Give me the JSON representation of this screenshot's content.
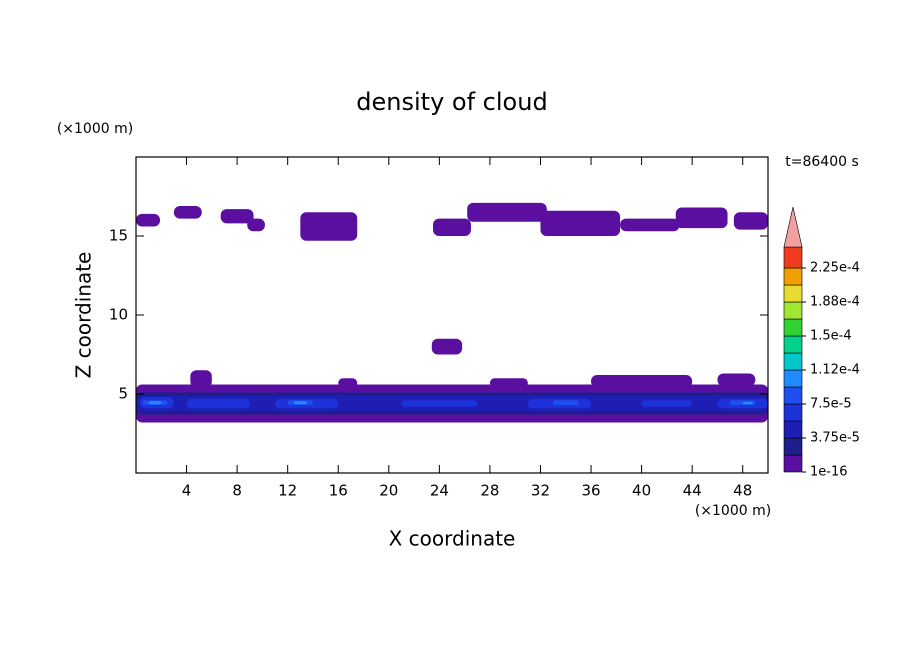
{
  "chart_data": {
    "type": "contour",
    "title": "density of cloud",
    "xlabel": "X coordinate",
    "ylabel": "Z coordinate",
    "x_unit_label": "(×1000 m)",
    "y_unit_label": "(×1000 m)",
    "time_label": "t=86400 s",
    "xlim": [
      0,
      50
    ],
    "xticks": [
      4,
      8,
      12,
      16,
      20,
      24,
      28,
      32,
      36,
      40,
      44,
      48
    ],
    "ylim": [
      0,
      20
    ],
    "yticks": [
      5,
      10,
      15
    ],
    "colorbar": {
      "levels": [
        1e-16,
        1.875e-05,
        3.75e-05,
        5.625e-05,
        7.5e-05,
        9.375e-05,
        0.0001125,
        0.00013125,
        0.00015,
        0.00016875,
        0.0001875,
        0.00020625,
        0.000225
      ],
      "colors": [
        "#5a0fa0",
        "#1e1e8c",
        "#1e1eb4",
        "#1e32dc",
        "#1e50f0",
        "#1e8cff",
        "#00c8c8",
        "#00d28c",
        "#32d232",
        "#a0e632",
        "#e6dc32",
        "#f0a000",
        "#f03c1e"
      ],
      "over_color": "#f5a0a0",
      "ticks": [
        1e-16,
        {
          "value": 3.75e-05,
          "label": "3.75e-5"
        },
        {
          "value": 7.5e-05,
          "label": "7.5e-5"
        },
        {
          "value": 0.0001125,
          "label": "1.12e-4"
        },
        {
          "value": 0.00015,
          "label": "1.5e-4"
        },
        {
          "value": 0.0001875,
          "label": "1.88e-4"
        },
        {
          "value": 0.000225,
          "label": "2.25e-4"
        }
      ]
    },
    "regions": [
      {
        "x": [
          0,
          1.9
        ],
        "z": [
          15.6,
          16.4
        ],
        "value": 1e-16
      },
      {
        "x": [
          3,
          5.2
        ],
        "z": [
          16.1,
          16.9
        ],
        "value": 1e-16
      },
      {
        "x": [
          6.7,
          9.3
        ],
        "z": [
          15.8,
          16.7
        ],
        "value": 1e-16
      },
      {
        "x": [
          8.8,
          10.2
        ],
        "z": [
          15.3,
          16.1
        ],
        "value": 1e-16
      },
      {
        "x": [
          13,
          17.5
        ],
        "z": [
          14.7,
          16.5
        ],
        "value": 1e-16
      },
      {
        "x": [
          23.5,
          26.5
        ],
        "z": [
          15,
          16.1
        ],
        "value": 1e-16
      },
      {
        "x": [
          26.2,
          32.5
        ],
        "z": [
          15.9,
          17.1
        ],
        "value": 1e-16
      },
      {
        "x": [
          32,
          38.3
        ],
        "z": [
          15,
          16.6
        ],
        "value": 1e-16
      },
      {
        "x": [
          38.3,
          43
        ],
        "z": [
          15.3,
          16.1
        ],
        "value": 1e-16
      },
      {
        "x": [
          42.7,
          46.8
        ],
        "z": [
          15.5,
          16.8
        ],
        "value": 1e-16
      },
      {
        "x": [
          47.3,
          50
        ],
        "z": [
          15.4,
          16.5
        ],
        "value": 1e-16
      },
      {
        "x": [
          23.4,
          25.8
        ],
        "z": [
          7.5,
          8.5
        ],
        "value": 1e-16
      },
      {
        "x": [
          0,
          50
        ],
        "z": [
          3.2,
          5.6
        ],
        "value": 1e-16
      },
      {
        "x": [
          4.3,
          6
        ],
        "z": [
          5.4,
          6.5
        ],
        "value": 1e-16
      },
      {
        "x": [
          16,
          17.5
        ],
        "z": [
          5.4,
          6
        ],
        "value": 1e-16
      },
      {
        "x": [
          28,
          31
        ],
        "z": [
          5.4,
          6
        ],
        "value": 1e-16
      },
      {
        "x": [
          36,
          44
        ],
        "z": [
          5.4,
          6.2
        ],
        "value": 1e-16
      },
      {
        "x": [
          46,
          49
        ],
        "z": [
          5.5,
          6.3
        ],
        "value": 1e-16
      },
      {
        "x": [
          0,
          50
        ],
        "z": [
          3.7,
          5.1
        ],
        "value": 1.875e-05
      },
      {
        "x": [
          0,
          50
        ],
        "z": [
          3.9,
          4.9
        ],
        "value": 3.75e-05
      },
      {
        "x": [
          0.3,
          3
        ],
        "z": [
          4.1,
          4.8
        ],
        "value": 5.625e-05
      },
      {
        "x": [
          4,
          9
        ],
        "z": [
          4.1,
          4.7
        ],
        "value": 5.625e-05
      },
      {
        "x": [
          11,
          16
        ],
        "z": [
          4.1,
          4.7
        ],
        "value": 5.625e-05
      },
      {
        "x": [
          21,
          27
        ],
        "z": [
          4.2,
          4.6
        ],
        "value": 5.625e-05
      },
      {
        "x": [
          31,
          36
        ],
        "z": [
          4.1,
          4.7
        ],
        "value": 5.625e-05
      },
      {
        "x": [
          40,
          44
        ],
        "z": [
          4.2,
          4.6
        ],
        "value": 5.625e-05
      },
      {
        "x": [
          46,
          50
        ],
        "z": [
          4.1,
          4.7
        ],
        "value": 5.625e-05
      },
      {
        "x": [
          0.5,
          2.5
        ],
        "z": [
          4.3,
          4.6
        ],
        "value": 7.5e-05
      },
      {
        "x": [
          12,
          14
        ],
        "z": [
          4.3,
          4.6
        ],
        "value": 7.5e-05
      },
      {
        "x": [
          33,
          35
        ],
        "z": [
          4.3,
          4.6
        ],
        "value": 7.5e-05
      },
      {
        "x": [
          47,
          49
        ],
        "z": [
          4.3,
          4.6
        ],
        "value": 7.5e-05
      },
      {
        "x": [
          1,
          2
        ],
        "z": [
          4.35,
          4.55
        ],
        "value": 9.375e-05
      },
      {
        "x": [
          12.5,
          13.5
        ],
        "z": [
          4.35,
          4.55
        ],
        "value": 9.375e-05
      },
      {
        "x": [
          48,
          48.8
        ],
        "z": [
          4.35,
          4.5
        ],
        "value": 9.375e-05
      }
    ]
  }
}
